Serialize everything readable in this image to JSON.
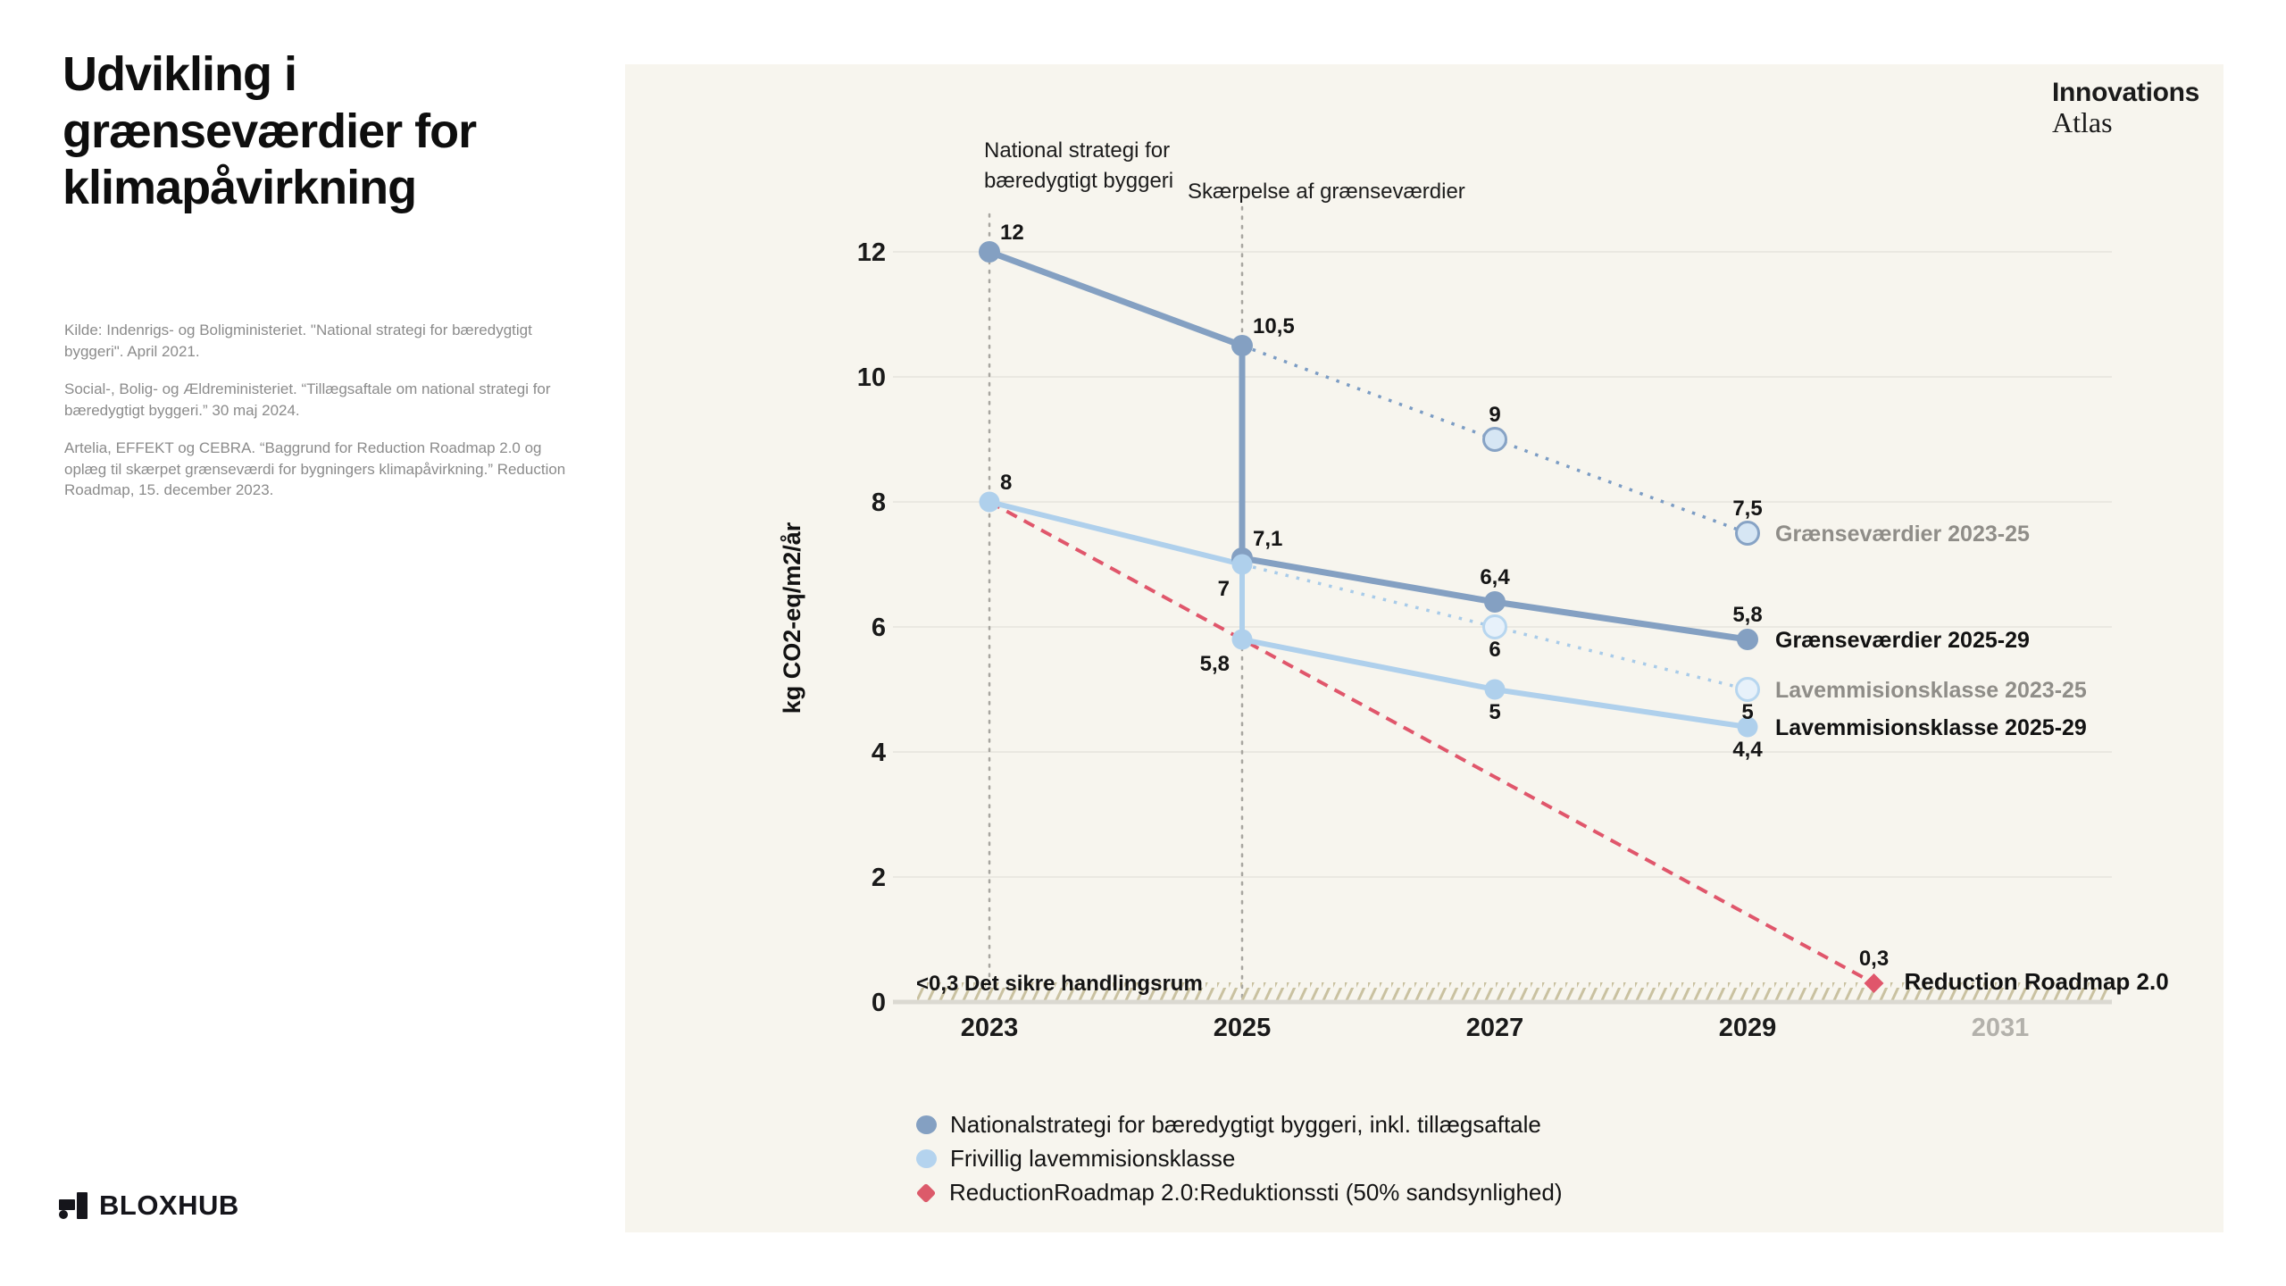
{
  "page": {
    "title": "Udvikling i grænseværdier for klimapåvirkning",
    "sources": [
      "Kilde: Indenrigs- og Boligministeriet. \"National strategi for bæredygtigt byggeri\". April 2021.",
      "Social-, Bolig- og Ældreministeriet. “Tillægsaftale om national strategi for bæredygtigt byggeri.” 30 maj 2024.",
      "Artelia, EFFEKT og CEBRA. “Baggrund for Reduction Roadmap 2.0 og oplæg til skærpet grænseværdi for bygningers klimapåvirkning.” Reduction Roadmap, 15. december 2023."
    ],
    "footer_logo": "BLOXHUB",
    "brand": {
      "line1": "Innovations",
      "line2": "Atlas"
    }
  },
  "chart_data": {
    "type": "line",
    "ylabel": "kg CO2-eq/m2/år",
    "ylim": [
      0,
      12
    ],
    "y_ticks": [
      0,
      2,
      4,
      6,
      8,
      10,
      12
    ],
    "x_ticks": [
      {
        "label": "2023",
        "year": 2023,
        "muted": false
      },
      {
        "label": "2025",
        "year": 2025,
        "muted": false
      },
      {
        "label": "2027",
        "year": 2027,
        "muted": false
      },
      {
        "label": "2029",
        "year": 2029,
        "muted": false
      },
      {
        "label": "2031",
        "year": 2031,
        "muted": true
      }
    ],
    "annotations": [
      {
        "lines": [
          "National strategi for",
          "bæredygtigt byggeri"
        ],
        "year": 2023
      },
      {
        "lines": [
          "Skærpelse af grænseværdier"
        ],
        "year": 2025
      }
    ],
    "safe_zone": {
      "label": "<0,3 Det sikre handlingsrum",
      "threshold": 0.3,
      "hatch_color": "#c9c1a0"
    },
    "series": [
      {
        "name": "Reduction Roadmap 2.0",
        "line": "dashed",
        "color": "#e0566b",
        "width": 4,
        "marker": {
          "type": "diamond",
          "fill": "#e0566b",
          "last_only": true
        },
        "points": [
          [
            2023,
            8
          ],
          [
            2030,
            0.3
          ]
        ],
        "end_label": {
          "text": "Reduction Roadmap 2.0",
          "muted": false,
          "at_point": true
        }
      },
      {
        "name": "Grænseværdier 2023-25",
        "line": "dotted",
        "color": "#7b9cc4",
        "width": 3.5,
        "marker": {
          "type": "ring",
          "fill": "#d6e6f4",
          "stroke": "#87a3c5",
          "skip_first": true
        },
        "points": [
          [
            2025,
            10.5
          ],
          [
            2027,
            9
          ],
          [
            2029,
            7.5
          ]
        ],
        "end_label": {
          "text": "Grænseværdier 2023-25",
          "muted": true
        }
      },
      {
        "name": "Grænseværdier 2025-29",
        "line": "solid",
        "color": "#84a0c2",
        "width": 7,
        "marker": {
          "type": "dot",
          "r": 12
        },
        "points": [
          [
            2023,
            12
          ],
          [
            2025,
            10.5
          ],
          [
            2025,
            7.1
          ],
          [
            2027,
            6.4
          ],
          [
            2029,
            5.8
          ]
        ],
        "end_label": {
          "text": "Grænseværdier 2025-29",
          "muted": false
        }
      },
      {
        "name": "Lavemmisionsklasse 2023-25",
        "line": "dotted",
        "color": "#a8cbe9",
        "width": 3.5,
        "marker": {
          "type": "ring",
          "fill": "#e7f1fa",
          "stroke": "#b7d6ef",
          "skip_first": true
        },
        "points": [
          [
            2025,
            7
          ],
          [
            2027,
            6
          ],
          [
            2029,
            5
          ]
        ],
        "end_label": {
          "text": "Lavemmisionsklasse 2023-25",
          "muted": true
        }
      },
      {
        "name": "Lavemmisionsklasse 2025-29",
        "line": "solid",
        "color": "#afd0ec",
        "width": 6,
        "marker": {
          "type": "dot",
          "r": 11.5
        },
        "points": [
          [
            2023,
            8
          ],
          [
            2025,
            7
          ],
          [
            2025,
            5.8
          ],
          [
            2027,
            5
          ],
          [
            2029,
            4.4
          ]
        ],
        "end_label": {
          "text": "Lavemmisionsklasse 2025-29",
          "muted": false
        }
      }
    ],
    "point_labels": [
      {
        "text": "12",
        "x": 2023,
        "y": 12,
        "pos": "ne"
      },
      {
        "text": "10,5",
        "x": 2025,
        "y": 10.5,
        "pos": "ne"
      },
      {
        "text": "9",
        "x": 2027,
        "y": 9,
        "pos": "n"
      },
      {
        "text": "7,5",
        "x": 2029,
        "y": 7.5,
        "pos": "n"
      },
      {
        "text": "8",
        "x": 2023,
        "y": 8,
        "pos": "ne"
      },
      {
        "text": "7,1",
        "x": 2025,
        "y": 7.1,
        "pos": "ne"
      },
      {
        "text": "7",
        "x": 2025,
        "y": 7,
        "pos": "sw"
      },
      {
        "text": "5,8",
        "x": 2025,
        "y": 5.8,
        "pos": "sw"
      },
      {
        "text": "6,4",
        "x": 2027,
        "y": 6.4,
        "pos": "n"
      },
      {
        "text": "6",
        "x": 2027,
        "y": 6,
        "pos": "s"
      },
      {
        "text": "5",
        "x": 2027,
        "y": 5,
        "pos": "s"
      },
      {
        "text": "5,8",
        "x": 2029,
        "y": 5.8,
        "pos": "n"
      },
      {
        "text": "5",
        "x": 2029,
        "y": 5,
        "pos": "s"
      },
      {
        "text": "4,4",
        "x": 2029,
        "y": 4.4,
        "pos": "s"
      },
      {
        "text": "0,3",
        "x": 2030,
        "y": 0.3,
        "pos": "n"
      }
    ],
    "legend": [
      {
        "label": "Nationalstrategi for bæredygtigt byggeri, inkl. tillægsaftale",
        "color": "#84a0c2",
        "marker": "dot"
      },
      {
        "label": "Frivillig lavemmisionsklasse",
        "color": "#b4d3ee",
        "marker": "dot"
      },
      {
        "label": "ReductionRoadmap 2.0:Reduktionssti (50% sandsynlighed)",
        "color": "#dc5a6a",
        "marker": "diamond"
      }
    ]
  }
}
